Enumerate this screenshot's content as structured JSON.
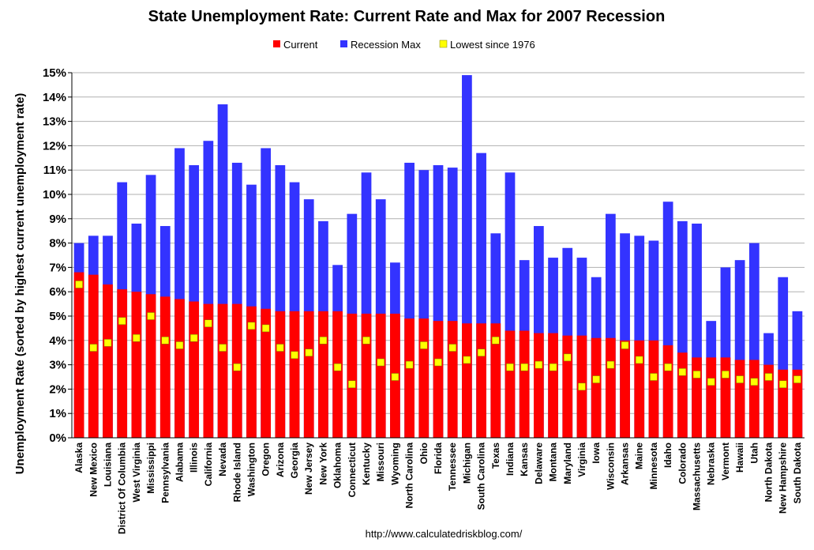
{
  "chart_data": {
    "type": "bar",
    "title": "State Unemployment Rate: Current Rate and Max for 2007 Recession",
    "xlabel": "",
    "ylabel": "Unemployment Rate (sorted by highest current unemployment rate)",
    "source": "http://www.calculatedriskblog.com/",
    "ylim": [
      0,
      15
    ],
    "yticks": [
      "0%",
      "1%",
      "2%",
      "3%",
      "4%",
      "5%",
      "6%",
      "7%",
      "8%",
      "9%",
      "10%",
      "11%",
      "12%",
      "13%",
      "14%",
      "15%"
    ],
    "legend_position": "top-center",
    "grid": true,
    "colors": {
      "current": "#ff0000",
      "recession_max": "#3333ff",
      "lowest": "#ffff00"
    },
    "categories": [
      "Alaska",
      "New Mexico",
      "Louisiana",
      "District Of Columbia",
      "West Virginia",
      "Mississippi",
      "Pennsylvania",
      "Alabama",
      "Illinois",
      "California",
      "Nevada",
      "Rhode Island",
      "Washington",
      "Oregon",
      "Arizona",
      "Georgia",
      "New Jersey",
      "New York",
      "Oklahoma",
      "Connecticut",
      "Kentucky",
      "Missouri",
      "Wyoming",
      "North Carolina",
      "Ohio",
      "Florida",
      "Tennessee",
      "Michigan",
      "South Carolina",
      "Texas",
      "Indiana",
      "Kansas",
      "Delaware",
      "Montana",
      "Maryland",
      "Virginia",
      "Iowa",
      "Wisconsin",
      "Arkansas",
      "Maine",
      "Minnesota",
      "Idaho",
      "Colorado",
      "Massachusetts",
      "Nebraska",
      "Vermont",
      "Hawaii",
      "Utah",
      "North Dakota",
      "New Hampshire",
      "South Dakota"
    ],
    "series": [
      {
        "name": "Current",
        "values": [
          6.8,
          6.7,
          6.3,
          6.1,
          6.0,
          5.9,
          5.8,
          5.7,
          5.6,
          5.5,
          5.5,
          5.5,
          5.4,
          5.3,
          5.2,
          5.2,
          5.2,
          5.2,
          5.2,
          5.1,
          5.1,
          5.1,
          5.1,
          4.9,
          4.9,
          4.8,
          4.8,
          4.7,
          4.7,
          4.7,
          4.4,
          4.4,
          4.3,
          4.3,
          4.2,
          4.2,
          4.1,
          4.1,
          4.0,
          4.0,
          4.0,
          3.8,
          3.5,
          3.3,
          3.3,
          3.3,
          3.2,
          3.2,
          3.0,
          2.8,
          2.8
        ]
      },
      {
        "name": "Recession Max",
        "values": [
          8.0,
          8.3,
          8.3,
          10.5,
          8.8,
          10.8,
          8.7,
          11.9,
          11.2,
          12.2,
          13.7,
          11.3,
          10.4,
          11.9,
          11.2,
          10.5,
          9.8,
          8.9,
          7.1,
          9.2,
          10.9,
          9.8,
          7.2,
          11.3,
          11.0,
          11.2,
          11.1,
          14.9,
          11.7,
          8.4,
          10.9,
          7.3,
          8.7,
          7.4,
          7.8,
          7.4,
          6.6,
          9.2,
          8.4,
          8.3,
          8.1,
          9.7,
          8.9,
          8.8,
          4.8,
          7.0,
          7.3,
          8.0,
          4.3,
          6.6,
          5.2
        ]
      },
      {
        "name": "Lowest since 1976",
        "values": [
          6.3,
          3.7,
          3.9,
          4.8,
          4.1,
          5.0,
          4.0,
          3.8,
          4.1,
          4.7,
          3.7,
          2.9,
          4.6,
          4.5,
          3.7,
          3.4,
          3.5,
          4.0,
          2.9,
          2.2,
          4.0,
          3.1,
          2.5,
          3.0,
          3.8,
          3.1,
          3.7,
          3.2,
          3.5,
          4.0,
          2.9,
          2.9,
          3.0,
          2.9,
          3.3,
          2.1,
          2.4,
          3.0,
          3.8,
          3.2,
          2.5,
          2.9,
          2.7,
          2.6,
          2.3,
          2.6,
          2.4,
          2.3,
          2.5,
          2.2,
          2.4
        ]
      }
    ]
  }
}
